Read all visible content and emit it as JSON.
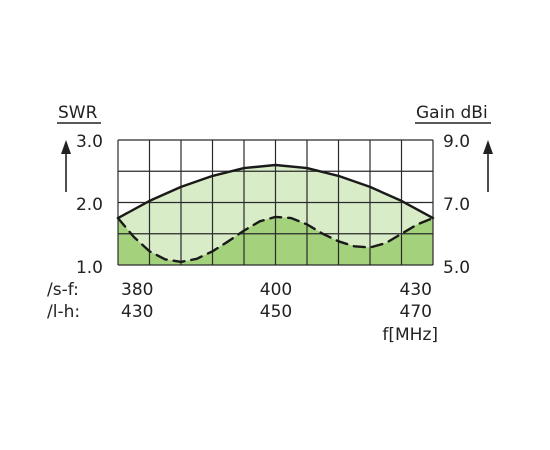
{
  "chart_data": {
    "type": "line",
    "left_axis": {
      "label": "SWR",
      "ticks": [
        "1.0",
        "2.0",
        "3.0"
      ],
      "ylim": [
        1.0,
        3.0
      ]
    },
    "right_axis": {
      "label": "Gain dBi",
      "ticks": [
        "5.0",
        "7.0",
        "9.0"
      ],
      "ylim": [
        5.0,
        9.0
      ]
    },
    "x_label": "f[MHz]",
    "x_rows": [
      {
        "label": "/s-f:",
        "ticks": [
          "380",
          "400",
          "430"
        ]
      },
      {
        "label": "/l-h:",
        "ticks": [
          "430",
          "450",
          "470"
        ]
      }
    ],
    "xlim": [
      0,
      1
    ],
    "grid": true,
    "series": [
      {
        "style": "solid",
        "axis": "right",
        "fill": "#d9ecc8",
        "x": [
          0,
          0.1,
          0.2,
          0.3,
          0.4,
          0.5,
          0.6,
          0.7,
          0.8,
          0.9,
          1.0
        ],
        "values": [
          6.5,
          7.05,
          7.5,
          7.85,
          8.1,
          8.2,
          8.1,
          7.85,
          7.5,
          7.05,
          6.5
        ]
      },
      {
        "style": "dashed",
        "axis": "left",
        "fill": "#a4d17c",
        "x": [
          0,
          0.05,
          0.1,
          0.15,
          0.2,
          0.25,
          0.3,
          0.35,
          0.4,
          0.45,
          0.5,
          0.55,
          0.6,
          0.65,
          0.7,
          0.75,
          0.8,
          0.85,
          0.9,
          0.95,
          1.0
        ],
        "values": [
          1.75,
          1.45,
          1.22,
          1.09,
          1.05,
          1.1,
          1.22,
          1.38,
          1.55,
          1.7,
          1.77,
          1.75,
          1.65,
          1.5,
          1.38,
          1.3,
          1.28,
          1.35,
          1.5,
          1.65,
          1.75
        ]
      }
    ]
  }
}
